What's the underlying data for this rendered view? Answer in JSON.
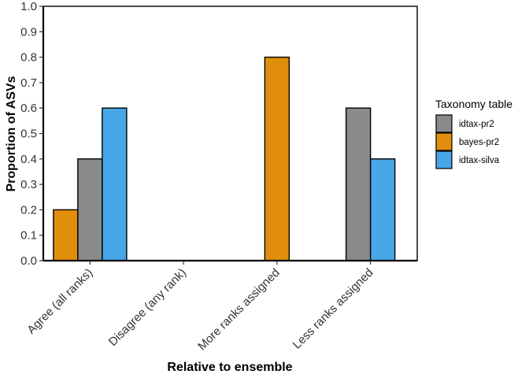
{
  "chart_data": {
    "type": "bar",
    "title": "",
    "xlabel": "Relative to ensemble",
    "ylabel": "Proportion of ASVs",
    "ylim": [
      0,
      1
    ],
    "yticks": [
      "0.0",
      "0.1",
      "0.2",
      "0.3",
      "0.4",
      "0.5",
      "0.6",
      "0.7",
      "0.8",
      "0.9",
      "1.0"
    ],
    "categories": [
      "Agree (all ranks)",
      "Disagree (any rank)",
      "More ranks assigned",
      "Less ranks assigned"
    ],
    "legend": {
      "title": "Taxonomy table",
      "position": "right"
    },
    "series": [
      {
        "name": "idtax-pr2",
        "color": "#8a8a8a",
        "values": [
          0.4,
          null,
          null,
          0.6
        ]
      },
      {
        "name": "bayes-pr2",
        "color": "#e08e0b",
        "values": [
          0.2,
          null,
          0.8,
          null
        ]
      },
      {
        "name": "idtax-silva",
        "color": "#47a6e6",
        "values": [
          0.6,
          null,
          null,
          0.4
        ]
      }
    ],
    "grid": false
  }
}
